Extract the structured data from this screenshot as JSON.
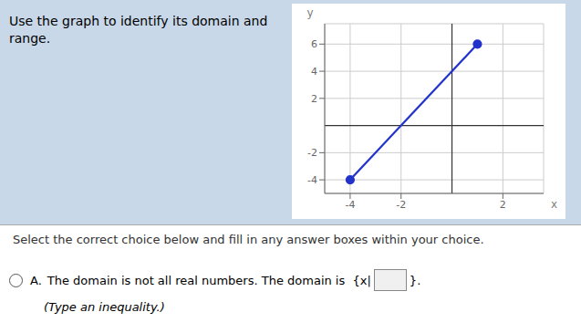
{
  "chart_data": {
    "type": "line",
    "title": "Use the graph to identify its domain and\nrange.",
    "xlabel": "x",
    "ylabel": "y",
    "x": [
      -4,
      1
    ],
    "values": [
      -4,
      6
    ],
    "color": "#2233cc",
    "marker": "circle",
    "xlim": [
      -5,
      3.6
    ],
    "ylim": [
      -5,
      7.5
    ],
    "xticks": [
      -4,
      -2,
      2
    ],
    "yticks": [
      -4,
      -2,
      2,
      4,
      6
    ],
    "grid": true,
    "annotations": [
      "Select the correct choice below and fill in any answer boxes within your choice.",
      "A.",
      "The domain is not all real numbers. The domain is  {x|",
      "}.",
      "(Type an inequality.)"
    ]
  }
}
